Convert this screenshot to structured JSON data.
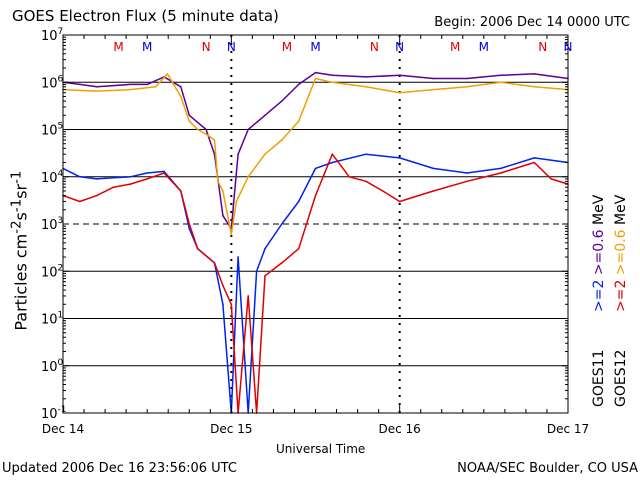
{
  "chart_data": {
    "type": "line",
    "title": "GOES Electron Flux (5 minute data)",
    "begin_label": "Begin: 2006 Dec 14 0000 UTC",
    "xlabel": "Universal Time",
    "ylabel": "Particles cm-2s-1sr-1",
    "x_ticks": [
      "Dec 14",
      "Dec 15",
      "Dec 16",
      "Dec 17"
    ],
    "xlim_days": [
      0,
      3
    ],
    "y_scale": "log",
    "ylim": [
      0.1,
      10000000
    ],
    "y_ticks": [
      {
        "base": "10",
        "exp": "-1"
      },
      {
        "base": "10",
        "exp": "0"
      },
      {
        "base": "10",
        "exp": "1"
      },
      {
        "base": "10",
        "exp": "2"
      },
      {
        "base": "10",
        "exp": "3"
      },
      {
        "base": "10",
        "exp": "4"
      },
      {
        "base": "10",
        "exp": "5"
      },
      {
        "base": "10",
        "exp": "6"
      },
      {
        "base": "10",
        "exp": "7"
      }
    ],
    "threshold_dashed": 1000,
    "markers": [
      {
        "label": "M",
        "day": 0.33,
        "color": "#e00000"
      },
      {
        "label": "M",
        "day": 0.5,
        "color": "#0000dd"
      },
      {
        "label": "N",
        "day": 0.85,
        "color": "#e00000"
      },
      {
        "label": "N",
        "day": 1.0,
        "color": "#0000dd"
      },
      {
        "label": "M",
        "day": 1.33,
        "color": "#e00000"
      },
      {
        "label": "M",
        "day": 1.5,
        "color": "#0000dd"
      },
      {
        "label": "N",
        "day": 1.85,
        "color": "#e00000"
      },
      {
        "label": "N",
        "day": 2.0,
        "color": "#0000dd"
      },
      {
        "label": "M",
        "day": 2.33,
        "color": "#e00000"
      },
      {
        "label": "M",
        "day": 2.5,
        "color": "#0000dd"
      },
      {
        "label": "N",
        "day": 2.85,
        "color": "#e00000"
      },
      {
        "label": "N",
        "day": 3.0,
        "color": "#0000dd"
      }
    ],
    "series": [
      {
        "name": ">=0.6 MeV GOES11",
        "color": "#5a0099",
        "points": [
          [
            0,
            1000000.0
          ],
          [
            0.1,
            900000.0
          ],
          [
            0.2,
            800000.0
          ],
          [
            0.3,
            850000.0
          ],
          [
            0.4,
            900000.0
          ],
          [
            0.5,
            900000.0
          ],
          [
            0.6,
            1300000.0
          ],
          [
            0.7,
            800000.0
          ],
          [
            0.75,
            200000.0
          ],
          [
            0.85,
            100000.0
          ],
          [
            0.9,
            30000.0
          ],
          [
            0.95,
            1500.0
          ],
          [
            1.0,
            800.0
          ],
          [
            1.04,
            30000.0
          ],
          [
            1.1,
            100000.0
          ],
          [
            1.2,
            200000.0
          ],
          [
            1.3,
            400000.0
          ],
          [
            1.4,
            900000.0
          ],
          [
            1.5,
            1600000.0
          ],
          [
            1.6,
            1400000.0
          ],
          [
            1.8,
            1300000.0
          ],
          [
            2.0,
            1400000.0
          ],
          [
            2.2,
            1200000.0
          ],
          [
            2.4,
            1200000.0
          ],
          [
            2.6,
            1400000.0
          ],
          [
            2.8,
            1500000.0
          ],
          [
            3.0,
            1200000.0
          ]
        ]
      },
      {
        "name": ">=0.6 MeV GOES12",
        "color": "#f0a000",
        "points": [
          [
            0,
            700000.0
          ],
          [
            0.2,
            650000.0
          ],
          [
            0.4,
            700000.0
          ],
          [
            0.55,
            800000.0
          ],
          [
            0.62,
            1500000.0
          ],
          [
            0.7,
            500000.0
          ],
          [
            0.75,
            150000.0
          ],
          [
            0.8,
            100000.0
          ],
          [
            0.85,
            80000.0
          ],
          [
            0.9,
            60000.0
          ],
          [
            0.92,
            8000.0
          ],
          [
            0.95,
            5000.0
          ],
          [
            1.0,
            600.0
          ],
          [
            1.03,
            3000.0
          ],
          [
            1.1,
            10000.0
          ],
          [
            1.2,
            30000.0
          ],
          [
            1.3,
            60000.0
          ],
          [
            1.4,
            150000.0
          ],
          [
            1.5,
            1200000.0
          ],
          [
            1.6,
            1000000.0
          ],
          [
            1.8,
            800000.0
          ],
          [
            2.0,
            600000.0
          ],
          [
            2.2,
            700000.0
          ],
          [
            2.4,
            800000.0
          ],
          [
            2.6,
            1000000.0
          ],
          [
            2.8,
            800000.0
          ],
          [
            3.0,
            700000.0
          ]
        ]
      },
      {
        "name": ">=2 MeV GOES11",
        "color": "#0022ee",
        "points": [
          [
            0,
            15000.0
          ],
          [
            0.1,
            10000.0
          ],
          [
            0.2,
            9000.0
          ],
          [
            0.3,
            9500.0
          ],
          [
            0.4,
            10000.0
          ],
          [
            0.5,
            12000.0
          ],
          [
            0.6,
            13000.0
          ],
          [
            0.7,
            5000.0
          ],
          [
            0.75,
            800.0
          ],
          [
            0.8,
            300.0
          ],
          [
            0.9,
            150.0
          ],
          [
            0.95,
            20.0
          ],
          [
            1.0,
            0.1
          ],
          [
            1.04,
            200.0
          ],
          [
            1.1,
            0.1
          ],
          [
            1.15,
            100.0
          ],
          [
            1.2,
            300.0
          ],
          [
            1.3,
            1000.0
          ],
          [
            1.4,
            3000.0
          ],
          [
            1.5,
            15000.0
          ],
          [
            1.6,
            20000.0
          ],
          [
            1.8,
            30000.0
          ],
          [
            2.0,
            25000.0
          ],
          [
            2.2,
            15000.0
          ],
          [
            2.4,
            12000.0
          ],
          [
            2.6,
            15000.0
          ],
          [
            2.8,
            25000.0
          ],
          [
            3.0,
            20000.0
          ]
        ]
      },
      {
        "name": ">=2 MeV GOES12",
        "color": "#e00000",
        "points": [
          [
            0,
            4000.0
          ],
          [
            0.1,
            3000.0
          ],
          [
            0.2,
            4000.0
          ],
          [
            0.3,
            6000.0
          ],
          [
            0.4,
            7000.0
          ],
          [
            0.5,
            9000.0
          ],
          [
            0.6,
            12000.0
          ],
          [
            0.7,
            5000.0
          ],
          [
            0.75,
            1000.0
          ],
          [
            0.8,
            300.0
          ],
          [
            0.9,
            150.0
          ],
          [
            0.95,
            50.0
          ],
          [
            1.0,
            20.0
          ],
          [
            1.04,
            0.1
          ],
          [
            1.1,
            30.0
          ],
          [
            1.15,
            0.1
          ],
          [
            1.2,
            80.0
          ],
          [
            1.3,
            150.0
          ],
          [
            1.4,
            300.0
          ],
          [
            1.5,
            4000.0
          ],
          [
            1.6,
            30000.0
          ],
          [
            1.7,
            10000.0
          ],
          [
            1.8,
            8000.0
          ],
          [
            1.9,
            5000.0
          ],
          [
            2.0,
            3000.0
          ],
          [
            2.2,
            5000.0
          ],
          [
            2.4,
            8000.0
          ],
          [
            2.6,
            12000.0
          ],
          [
            2.8,
            20000.0
          ],
          [
            2.9,
            9000.0
          ],
          [
            3.0,
            7000.0
          ]
        ]
      }
    ],
    "side_labels": [
      {
        "text": ">=2 >=0.6 MeV",
        "color_a": "#0022ee",
        "color_b": "#5a0099"
      },
      {
        "text": ">=2 >=0.6 MeV",
        "color_a": "#e00000",
        "color_b": "#f0a000"
      }
    ],
    "satellites": [
      "GOES11",
      "GOES12"
    ]
  },
  "footer": {
    "updated": "Updated 2006 Dec 16 23:56:06 UTC",
    "credit": "NOAA/SEC Boulder, CO USA"
  }
}
